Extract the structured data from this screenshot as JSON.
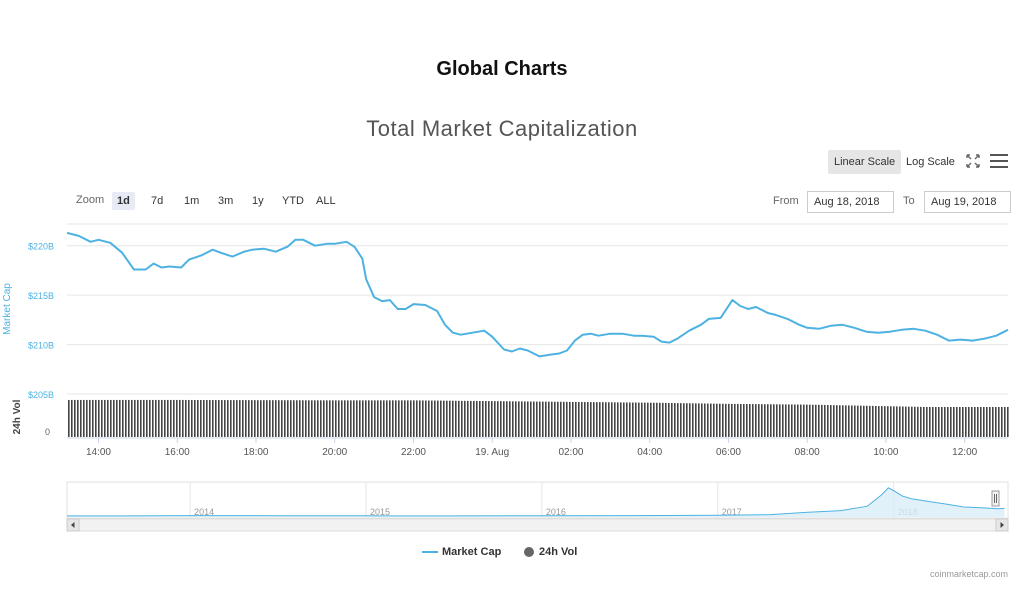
{
  "page_title": "Global Charts",
  "scale_buttons": {
    "linear": "Linear Scale",
    "log": "Log Scale"
  },
  "zoom": {
    "label": "Zoom",
    "options": [
      "1d",
      "7d",
      "1m",
      "3m",
      "1y",
      "YTD",
      "ALL"
    ],
    "selected": "1d"
  },
  "range": {
    "from_label": "From",
    "from_value": "Aug 18, 2018",
    "to_label": "To",
    "to_value": "Aug 19, 2018"
  },
  "legend": {
    "market_cap": "Market Cap",
    "volume": "24h Vol"
  },
  "credits": "coinmarketcap.com",
  "colors": {
    "line": "#4db2e2",
    "volume": "#444444",
    "navigator_fill": "#d9eef8",
    "selected_button": "#e6e6e6"
  },
  "icons": {
    "fullscreen": "expand-icon",
    "menu": "hamburger-icon"
  },
  "chart_data": [
    {
      "type": "line",
      "title": "Total Market Capitalization",
      "ylabel": "Market Cap",
      "ytick_labels": [
        "$205B",
        "$210B",
        "$215B",
        "$220B"
      ],
      "yticks": [
        205,
        210,
        215,
        220
      ],
      "ylim": [
        205,
        222.2
      ],
      "xtick_labels": [
        "14:00",
        "16:00",
        "18:00",
        "20:00",
        "22:00",
        "19. Aug",
        "02:00",
        "04:00",
        "06:00",
        "08:00",
        "10:00",
        "12:00"
      ],
      "xticks": [
        14,
        16,
        18,
        20,
        22,
        24,
        26,
        28,
        30,
        32,
        34,
        36
      ],
      "xlim": [
        13.2,
        37.1
      ],
      "grid": true,
      "series": [
        {
          "name": "Market Cap",
          "x": [
            13.2,
            13.5,
            13.8,
            14.0,
            14.3,
            14.6,
            14.9,
            15.2,
            15.4,
            15.6,
            15.8,
            16.1,
            16.3,
            16.6,
            16.9,
            17.1,
            17.4,
            17.7,
            17.9,
            18.2,
            18.5,
            18.8,
            19.0,
            19.2,
            19.5,
            19.8,
            20.0,
            20.3,
            20.5,
            20.7,
            20.8,
            21.0,
            21.2,
            21.4,
            21.6,
            21.8,
            22.0,
            22.3,
            22.6,
            22.8,
            23.0,
            23.2,
            23.5,
            23.8,
            24.0,
            24.3,
            24.5,
            24.7,
            24.9,
            25.2,
            25.5,
            25.7,
            25.9,
            26.1,
            26.3,
            26.5,
            26.7,
            27.0,
            27.3,
            27.6,
            27.8,
            28.1,
            28.3,
            28.5,
            28.7,
            29.0,
            29.3,
            29.5,
            29.8,
            30.1,
            30.3,
            30.5,
            30.7,
            31.0,
            31.2,
            31.5,
            31.8,
            32.0,
            32.3,
            32.6,
            32.9,
            33.2,
            33.5,
            33.8,
            34.1,
            34.4,
            34.7,
            35.0,
            35.3,
            35.6,
            35.9,
            36.2,
            36.5,
            36.8,
            37.1
          ],
          "y": [
            221.3,
            221.0,
            220.4,
            220.6,
            220.3,
            219.3,
            217.6,
            217.6,
            218.2,
            217.8,
            217.9,
            217.8,
            218.6,
            219.0,
            219.6,
            219.3,
            218.9,
            219.4,
            219.6,
            219.7,
            219.4,
            219.9,
            220.6,
            220.6,
            220.0,
            220.2,
            220.2,
            220.4,
            219.9,
            218.7,
            216.6,
            214.8,
            214.4,
            214.5,
            213.6,
            213.6,
            214.1,
            214.0,
            213.4,
            212.0,
            211.2,
            211.0,
            211.2,
            211.4,
            210.8,
            209.5,
            209.3,
            209.6,
            209.4,
            208.8,
            209.0,
            209.1,
            209.4,
            210.4,
            211.0,
            211.1,
            210.9,
            211.1,
            211.1,
            210.9,
            210.9,
            210.8,
            210.3,
            210.2,
            210.6,
            211.4,
            212.0,
            212.6,
            212.7,
            214.5,
            213.9,
            213.6,
            213.8,
            213.2,
            213.0,
            212.6,
            212.0,
            211.7,
            211.6,
            211.9,
            212.0,
            211.7,
            211.3,
            211.2,
            211.3,
            211.5,
            211.6,
            211.4,
            211.0,
            210.4,
            210.5,
            210.4,
            210.6,
            210.9,
            211.5
          ]
        }
      ]
    },
    {
      "type": "bar",
      "ylabel": "24h Vol",
      "ytick_labels": [
        "0"
      ],
      "yticks": [
        0
      ],
      "ylim": [
        0,
        100
      ],
      "series": [
        {
          "name": "24h Vol",
          "x": [
            13.2,
            16.0,
            20.0,
            22.0,
            24.0,
            28.0,
            30.0,
            32.0,
            34.0,
            35.0,
            37.1
          ],
          "values": [
            95,
            95,
            94,
            94,
            92,
            88,
            85,
            83,
            79,
            77,
            77
          ]
        }
      ]
    },
    {
      "type": "area",
      "xtick_labels": [
        "2014",
        "2015",
        "2016",
        "2017",
        "2018"
      ],
      "xticks": [
        2014.0,
        2015.0,
        2016.0,
        2017.0,
        2018.0
      ],
      "xlim": [
        2013.3,
        2018.65
      ],
      "ylim": [
        0,
        830
      ],
      "series": [
        {
          "name": "Market Cap",
          "x": [
            2013.3,
            2013.6,
            2014.0,
            2014.5,
            2015.0,
            2015.5,
            2016.0,
            2016.5,
            2017.0,
            2017.3,
            2017.5,
            2017.7,
            2017.85,
            2017.93,
            2017.97,
            2018.0,
            2018.05,
            2018.1,
            2018.2,
            2018.3,
            2018.4,
            2018.5,
            2018.6,
            2018.63
          ],
          "y": [
            2,
            3,
            10,
            8,
            5,
            4,
            7,
            10,
            18,
            40,
            100,
            150,
            270,
            580,
            780,
            700,
            550,
            480,
            400,
            330,
            250,
            230,
            200,
            210
          ]
        }
      ]
    }
  ]
}
